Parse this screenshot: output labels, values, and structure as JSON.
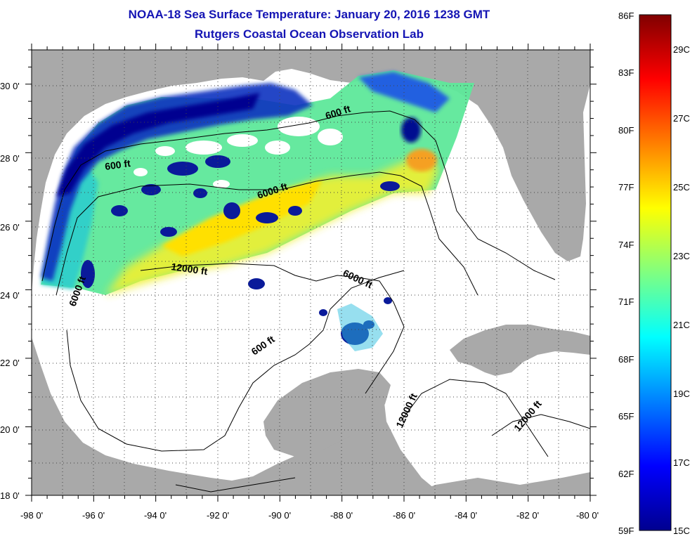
{
  "title": "NOAA-18 Sea Surface Temperature:  January 20, 2016 1238 GMT",
  "subtitle": "Rutgers Coastal Ocean Observation Lab",
  "map": {
    "lon_range": [
      -98,
      -80
    ],
    "lat_range": [
      18,
      31
    ],
    "lon_ticks": [
      "-98 0'",
      "-96 0'",
      "-94 0'",
      "-92 0'",
      "-90 0'",
      "-88 0'",
      "-86 0'",
      "-84 0'",
      "-82 0'",
      "-80 0'"
    ],
    "lat_ticks": [
      "18 0'",
      "20 0'",
      "22 0'",
      "24 0'",
      "26 0'",
      "28 0'",
      "30 0'"
    ],
    "grid": "dotted",
    "land_color": "#a9a9a9",
    "water_color": "#ffffff",
    "contour_labels": [
      "600 ft",
      "600 ft",
      "6000 ft",
      "12000 ft",
      "6000 ft",
      "6000 ft",
      "600 ft",
      "12000 ft",
      "12000 ft"
    ]
  },
  "colorbar": {
    "fahrenheit_labels": [
      "86F",
      "83F",
      "80F",
      "77F",
      "74F",
      "71F",
      "68F",
      "65F",
      "62F",
      "59F"
    ],
    "celsius_labels": [
      "29C",
      "27C",
      "25C",
      "23C",
      "21C",
      "19C",
      "17C",
      "15C"
    ],
    "range_f": [
      59,
      86
    ],
    "range_c": [
      15,
      30
    ],
    "colormap": "jet"
  }
}
